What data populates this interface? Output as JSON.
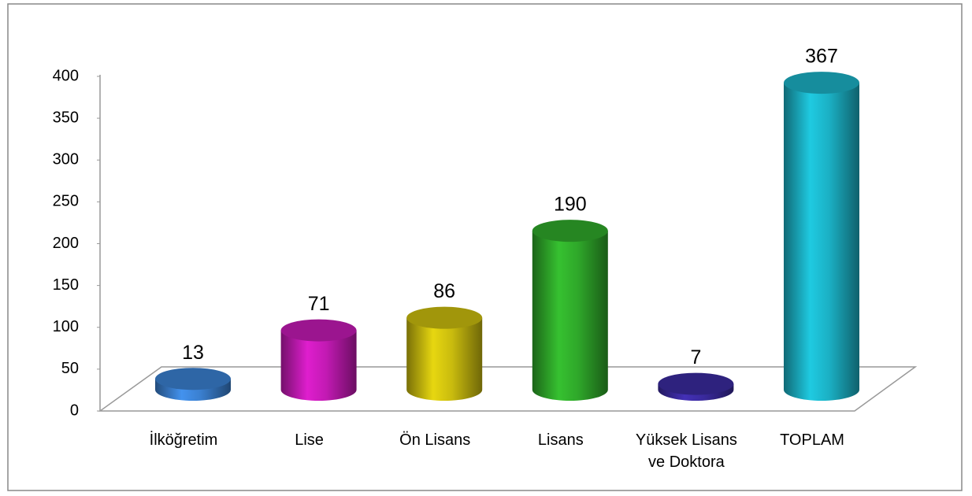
{
  "chart_data": {
    "type": "bar",
    "categories": [
      "İlköğretim",
      "Lise",
      "Ön Lisans",
      "Lisans",
      "Yüksek Lisans ve Doktora",
      "TOPLAM"
    ],
    "values": [
      13,
      71,
      86,
      190,
      7,
      367
    ],
    "colors": [
      "#3a7fcf",
      "#c21ab3",
      "#c9bb0e",
      "#2fa82a",
      "#3a2a9e",
      "#1bb0c4"
    ],
    "ylim": [
      0,
      400
    ],
    "yticks": [
      0,
      50,
      100,
      150,
      200,
      250,
      300,
      350,
      400
    ]
  }
}
